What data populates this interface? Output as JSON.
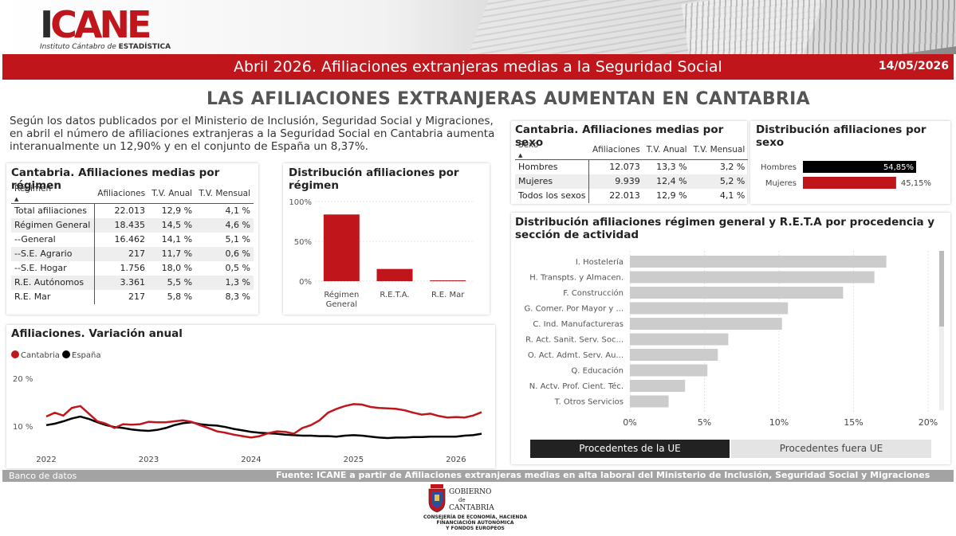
{
  "header": {
    "logo_text": "ICANE",
    "logo_sub_1": "Instituto Cántabro de ",
    "logo_sub_2": "ESTADÍSTICA",
    "title": "Abril 2026. Afiliaciones extranjeras medias a la Seguridad Social",
    "date": "14/05/2026"
  },
  "headline": "LAS AFILIACIONES EXTRANJERAS AUMENTAN EN CANTABRIA",
  "intro": "Según los datos publicados por el Ministerio de Inclusión, Seguridad Social y Migraciones, en abril el número de afiliaciones extranjeras a la Seguridad Social en Cantabria aumenta interanualmente un 12,90% y en el conjunto de España un 8,37%.",
  "regimen_table": {
    "title": "Cantabria. Afiliaciones medias por régimen",
    "headers": [
      "Régimen",
      "Afiliaciones",
      "T.V. Anual",
      "T.V. Mensual"
    ],
    "rows": [
      [
        "Total afiliaciones",
        "22.013",
        "12,9 %",
        "4,1 %"
      ],
      [
        "Régimen General",
        "18.435",
        "14,5 %",
        "4,6 %"
      ],
      [
        "--General",
        "16.462",
        "14,1 %",
        "5,1 %"
      ],
      [
        "--S.E. Agrario",
        "217",
        "11,7 %",
        "0,6 %"
      ],
      [
        "--S.E. Hogar",
        "1.756",
        "18,0 %",
        "0,5 %"
      ],
      [
        "R.E. Autónomos",
        "3.361",
        "5,5 %",
        "1,3 %"
      ],
      [
        "R.E. Mar",
        "217",
        "5,8 %",
        "8,3 %"
      ]
    ]
  },
  "sexo_table": {
    "title": "Cantabria. Afiliaciones medias por sexo",
    "headers": [
      "Sexo",
      "Afiliaciones",
      "T.V. Anual",
      "T.V. Mensual"
    ],
    "rows": [
      [
        "Hombres",
        "12.073",
        "13,3 %",
        "3,2 %"
      ],
      [
        "Mujeres",
        "9.939",
        "12,4 %",
        "5,2 %"
      ],
      [
        "Todos los sexos",
        "22.013",
        "12,9 %",
        "4,1 %"
      ]
    ]
  },
  "dist_regimen": {
    "title": "Distribución afiliaciones por régimen",
    "y_ticks": [
      "100%",
      "50%",
      "0%"
    ],
    "categories": [
      "Régimen General",
      "R.E.T.A.",
      "R.E. Mar"
    ],
    "category_lines": [
      [
        "Régimen",
        "General"
      ],
      [
        "R.E.T.A."
      ],
      [
        "R.E. Mar"
      ]
    ],
    "values": [
      83.7,
      15.3,
      1.0
    ],
    "ylim": [
      0,
      100
    ],
    "color": "#c0161b"
  },
  "dist_sexo": {
    "title": "Distribución afiliaciones por sexo",
    "rows": [
      {
        "label": "Hombres",
        "value": 54.85,
        "text": "54,85%",
        "color": "#000000"
      },
      {
        "label": "Mujeres",
        "value": 45.15,
        "text": "45,15%",
        "color": "#c0161b"
      }
    ]
  },
  "variacion": {
    "title": "Afiliaciones. Variación anual",
    "legend": [
      {
        "name": "Cantabria",
        "color": "#c0161b"
      },
      {
        "name": "España",
        "color": "#000000"
      }
    ],
    "y_ticks": [
      "20 %",
      "10 %"
    ],
    "x_ticks": [
      "2022",
      "2023",
      "2024",
      "2025",
      "2026"
    ]
  },
  "actividad": {
    "title": "Distribución afiliaciones régimen general y R.E.T.A por procedencia y sección de actividad",
    "categories": [
      "I. Hostelería",
      "H. Transpts. y Almacen.",
      "F. Construcción",
      "G. Comer. Por Mayor y ...",
      "C. Ind. Manufactureras",
      "R. Act. Sanit. Serv. Soc...",
      "O. Act. Admt. Serv. Au...",
      "Q. Educación",
      "N. Actv. Prof. Cient. Téc.",
      "T. Otros Servicios"
    ],
    "values": [
      17.2,
      16.4,
      14.3,
      10.6,
      10.2,
      6.6,
      5.9,
      5.2,
      3.7,
      2.6
    ],
    "x_ticks": [
      "0%",
      "5%",
      "10%",
      "15%",
      "20%"
    ],
    "xlim": [
      0,
      20
    ],
    "color": "#cccccc",
    "buttons": [
      "Procedentes de la UE",
      "Procedentes fuera UE"
    ]
  },
  "chart_data": [
    {
      "type": "bar",
      "title": "Distribución afiliaciones por régimen",
      "categories": [
        "Régimen General",
        "R.E.T.A.",
        "R.E. Mar"
      ],
      "values": [
        83.7,
        15.3,
        1.0
      ],
      "ylim": [
        0,
        100
      ]
    },
    {
      "type": "bar",
      "title": "Distribución afiliaciones por sexo",
      "categories": [
        "Hombres",
        "Mujeres"
      ],
      "values": [
        54.85,
        45.15
      ]
    },
    {
      "type": "line",
      "title": "Afiliaciones. Variación anual",
      "x": [
        "2022-01",
        "2022-02",
        "2022-03",
        "2022-04",
        "2022-05",
        "2022-06",
        "2022-07",
        "2022-08",
        "2022-09",
        "2022-10",
        "2022-11",
        "2022-12",
        "2023-01",
        "2023-02",
        "2023-03",
        "2023-04",
        "2023-05",
        "2023-06",
        "2023-07",
        "2023-08",
        "2023-09",
        "2023-10",
        "2023-11",
        "2023-12",
        "2024-01",
        "2024-02",
        "2024-03",
        "2024-04",
        "2024-05",
        "2024-06",
        "2024-07",
        "2024-08",
        "2024-09",
        "2024-10",
        "2024-11",
        "2024-12",
        "2025-01",
        "2025-02",
        "2025-03",
        "2025-04",
        "2025-05",
        "2025-06",
        "2025-07",
        "2025-08",
        "2025-09",
        "2025-10",
        "2025-11",
        "2025-12",
        "2026-01",
        "2026-02",
        "2026-03",
        "2026-04"
      ],
      "series": [
        {
          "name": "Cantabria",
          "values": [
            12.0,
            12.8,
            12.2,
            13.8,
            14.2,
            12.6,
            11.0,
            10.5,
            9.6,
            10.4,
            10.3,
            10.4,
            10.9,
            10.8,
            10.8,
            11.0,
            11.2,
            10.9,
            10.2,
            9.6,
            8.9,
            8.6,
            8.2,
            7.9,
            7.6,
            7.9,
            8.5,
            8.9,
            8.8,
            8.4,
            9.6,
            10.2,
            11.2,
            12.8,
            13.6,
            14.2,
            14.6,
            14.5,
            14.0,
            13.8,
            13.7,
            13.6,
            13.3,
            12.8,
            12.4,
            12.6,
            12.1,
            11.8,
            11.9,
            11.8,
            12.2,
            12.9
          ]
        },
        {
          "name": "España",
          "values": [
            10.2,
            10.5,
            11.0,
            11.6,
            12.0,
            11.5,
            10.8,
            10.2,
            9.8,
            9.6,
            9.3,
            9.1,
            9.0,
            9.2,
            9.6,
            10.2,
            10.6,
            10.8,
            10.4,
            10.2,
            10.1,
            9.8,
            9.4,
            9.1,
            8.8,
            8.6,
            8.5,
            8.4,
            8.2,
            8.1,
            8.0,
            8.0,
            7.9,
            7.9,
            7.8,
            8.0,
            8.1,
            8.0,
            7.8,
            7.6,
            7.5,
            7.6,
            7.6,
            7.7,
            7.7,
            7.8,
            7.8,
            7.8,
            7.8,
            8.0,
            8.1,
            8.4
          ]
        }
      ],
      "y_ticks": [
        "10 %",
        "20 %"
      ]
    },
    {
      "type": "bar",
      "title": "Distribución afiliaciones régimen general y R.E.T.A por procedencia y sección de actividad",
      "categories": [
        "I. Hostelería",
        "H. Transpts. y Almacen.",
        "F. Construcción",
        "G. Comer. Por Mayor y ...",
        "C. Ind. Manufactureras",
        "R. Act. Sanit. Serv. Soc...",
        "O. Act. Admt. Serv. Au...",
        "Q. Educación",
        "N. Actv. Prof. Cient. Téc.",
        "T. Otros Servicios"
      ],
      "values": [
        17.2,
        16.4,
        14.3,
        10.6,
        10.2,
        6.6,
        5.9,
        5.2,
        3.7,
        2.6
      ],
      "xlim": [
        0,
        20
      ]
    }
  ],
  "footer": {
    "left": "Banco de datos",
    "source": "Fuente: ICANE a partir de Afiliaciones extranjeras medias en alta laboral del Ministerio de Inclusión, Seguridad Social y Migraciones",
    "gob_line1": "GOBIERNO",
    "gob_line2": "de",
    "gob_line3": "CANTABRIA",
    "gob_sub1": "CONSEJERÍA DE ECONOMÍA, HACIENDA",
    "gob_sub2": "FINANCIACIÓN AUTONÓMICA",
    "gob_sub3": "Y FONDOS EUROPEOS"
  }
}
